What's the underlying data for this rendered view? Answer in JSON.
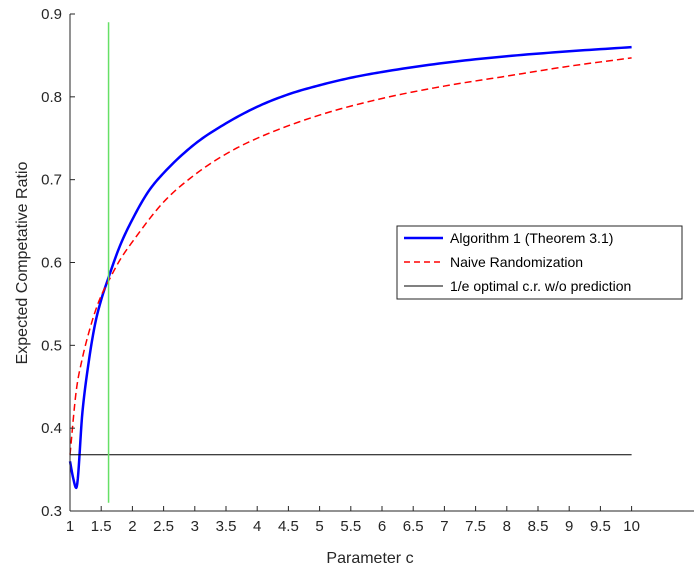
{
  "chart_data": {
    "type": "line",
    "xlabel": "Parameter c",
    "ylabel": "Expected Competative Ratio",
    "xlim": [
      1,
      11
    ],
    "ylim": [
      0.3,
      0.9
    ],
    "x_ticks": [
      1,
      1.5,
      2,
      2.5,
      3,
      3.5,
      4,
      4.5,
      5,
      5.5,
      6,
      6.5,
      7,
      7.5,
      8,
      8.5,
      9,
      9.5,
      10
    ],
    "x_tick_labels": [
      "1",
      "1.5",
      "2",
      "2.5",
      "3",
      "3.5",
      "4",
      "4.5",
      "5",
      "5.5",
      "6",
      "6.5",
      "7",
      "7.5",
      "8",
      "8.5",
      "9",
      "9.5",
      "10"
    ],
    "y_ticks": [
      0.3,
      0.4,
      0.5,
      0.6,
      0.7,
      0.8,
      0.9
    ],
    "y_tick_labels": [
      "0.3",
      "0.4",
      "0.5",
      "0.6",
      "0.7",
      "0.8",
      "0.9"
    ],
    "grid": false,
    "legend_position": "right",
    "series": [
      {
        "name": "Algorithm 1 (Theorem 3.1)",
        "color": "#0000ff",
        "style": "solid",
        "x": [
          1.0,
          1.05,
          1.1,
          1.2,
          1.3,
          1.4,
          1.5,
          1.6,
          1.8,
          2.0,
          2.25,
          2.5,
          3.0,
          3.5,
          4.0,
          4.5,
          5.0,
          5.5,
          6.0,
          7.0,
          8.0,
          9.0,
          10.0
        ],
        "y": [
          0.36,
          0.34,
          0.328,
          0.42,
          0.48,
          0.525,
          0.555,
          0.578,
          0.62,
          0.652,
          0.685,
          0.708,
          0.743,
          0.768,
          0.788,
          0.803,
          0.814,
          0.823,
          0.83,
          0.841,
          0.849,
          0.855,
          0.86
        ]
      },
      {
        "name": "Naive Randomization",
        "color": "#ff0000",
        "style": "dashed",
        "x": [
          1.0,
          1.1,
          1.2,
          1.3,
          1.4,
          1.5,
          1.6,
          1.8,
          2.0,
          2.5,
          3.0,
          3.5,
          4.0,
          5.0,
          6.0,
          7.0,
          8.0,
          9.0,
          10.0
        ],
        "y": [
          0.368,
          0.445,
          0.485,
          0.515,
          0.54,
          0.56,
          0.575,
          0.603,
          0.625,
          0.673,
          0.706,
          0.731,
          0.75,
          0.778,
          0.798,
          0.813,
          0.825,
          0.837,
          0.847
        ]
      },
      {
        "name": "1/e optimal c.r. w/o prediction",
        "color": "#000000",
        "style": "solid",
        "x": [
          1.0,
          10.0
        ],
        "y": [
          0.3679,
          0.3679
        ]
      }
    ],
    "vertical_line": {
      "x": 1.618,
      "y_range": [
        0.31,
        0.89
      ],
      "color": "#66e066"
    }
  }
}
